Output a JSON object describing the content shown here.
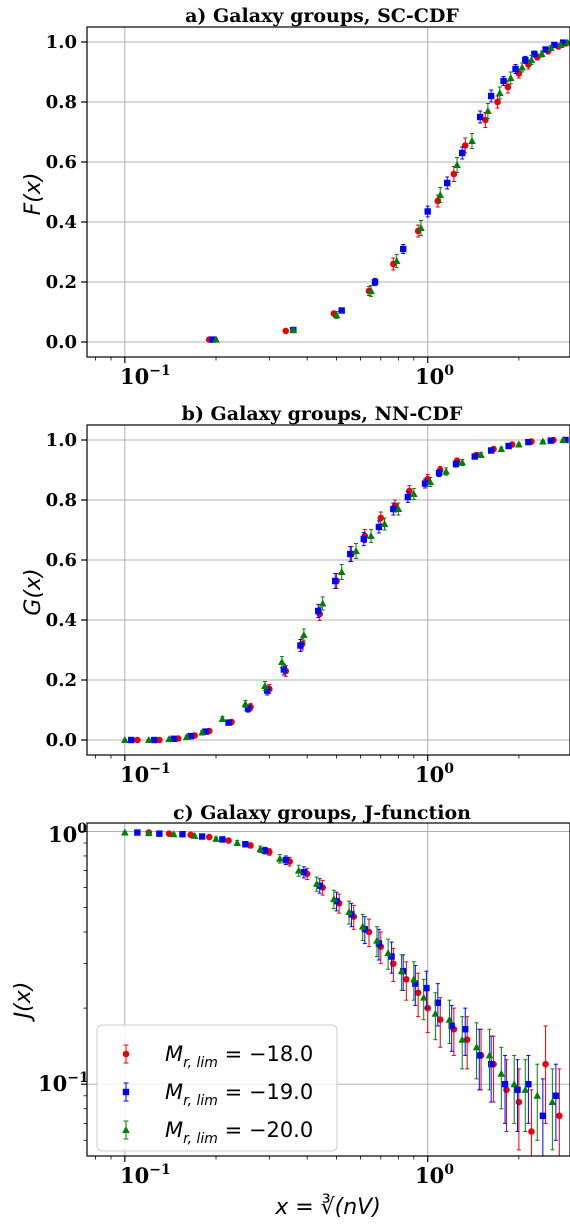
{
  "colors": {
    "red": "#e8000b",
    "blue": "#0000ff",
    "green": "#008000",
    "grid": "#b0b0b0"
  },
  "xlabel": "x = ∛(nV)",
  "legend": {
    "placement": "lower-left",
    "entries": [
      {
        "label": "M_{r,lim} = −18.0",
        "text_main": "M",
        "text_sub": "r, lim",
        "text_rest": " = −18.0",
        "color": "#e8000b",
        "marker": "circle"
      },
      {
        "label": "M_{r,lim} = −19.0",
        "text_main": "M",
        "text_sub": "r, lim",
        "text_rest": " = −19.0",
        "color": "#0000ff",
        "marker": "square"
      },
      {
        "label": "M_{r,lim} = −20.0",
        "text_main": "M",
        "text_sub": "r, lim",
        "text_rest": " = −20.0",
        "color": "#008000",
        "marker": "triangle"
      }
    ]
  },
  "chart_data": [
    {
      "type": "scatter",
      "title": "a) Galaxy groups, SC-CDF",
      "ylabel": "F(x)",
      "xscale": "log",
      "yscale": "linear",
      "xlim": [
        0.075,
        2.95
      ],
      "ylim": [
        -0.05,
        1.05
      ],
      "yticks": [
        "0.0",
        "0.2",
        "0.4",
        "0.6",
        "0.8",
        "1.0"
      ],
      "xticks": [
        "10",
        "10"
      ],
      "xtick_exponents": [
        "−1",
        "0"
      ],
      "grid": true,
      "series": [
        {
          "name": "M_{r,lim} = −18.0",
          "x": [
            0.19,
            0.34,
            0.49,
            0.64,
            0.77,
            0.93,
            1.08,
            1.22,
            1.33,
            1.55,
            1.7,
            1.84,
            2.0,
            2.15,
            2.3,
            2.5,
            2.7,
            2.85
          ],
          "y": [
            0.008,
            0.037,
            0.095,
            0.17,
            0.26,
            0.37,
            0.47,
            0.56,
            0.655,
            0.74,
            0.8,
            0.85,
            0.895,
            0.925,
            0.95,
            0.97,
            0.985,
            0.995
          ]
        },
        {
          "name": "M_{r,lim} = −19.0",
          "x": [
            0.195,
            0.36,
            0.52,
            0.67,
            0.83,
            1.0,
            1.16,
            1.3,
            1.49,
            1.62,
            1.78,
            1.95,
            2.1,
            2.25,
            2.45,
            2.62,
            2.8
          ],
          "y": [
            0.008,
            0.04,
            0.105,
            0.2,
            0.31,
            0.435,
            0.53,
            0.63,
            0.75,
            0.82,
            0.87,
            0.91,
            0.94,
            0.96,
            0.975,
            0.99,
            0.998
          ]
        },
        {
          "name": "M_{r,lim} = −20.0",
          "x": [
            0.2,
            0.36,
            0.5,
            0.65,
            0.79,
            0.95,
            1.1,
            1.25,
            1.4,
            1.58,
            1.73,
            1.88,
            2.05,
            2.2,
            2.38,
            2.55,
            2.75,
            2.9
          ],
          "y": [
            0.008,
            0.04,
            0.09,
            0.17,
            0.27,
            0.38,
            0.49,
            0.59,
            0.67,
            0.77,
            0.83,
            0.88,
            0.915,
            0.94,
            0.96,
            0.98,
            0.99,
            0.998
          ]
        }
      ],
      "errors": [
        [
          0.004,
          0.005,
          0.008,
          0.015,
          0.02,
          0.02,
          0.02,
          0.025,
          0.025,
          0.025,
          0.02,
          0.02,
          0.015,
          0.015,
          0.01,
          0.01,
          0.008,
          0.004
        ],
        [
          0.004,
          0.005,
          0.008,
          0.012,
          0.015,
          0.018,
          0.02,
          0.02,
          0.02,
          0.02,
          0.015,
          0.015,
          0.012,
          0.01,
          0.008,
          0.006,
          0.004
        ],
        [
          0.004,
          0.005,
          0.012,
          0.018,
          0.022,
          0.025,
          0.025,
          0.025,
          0.025,
          0.025,
          0.02,
          0.02,
          0.015,
          0.015,
          0.01,
          0.008,
          0.006,
          0.004
        ]
      ]
    },
    {
      "type": "scatter",
      "title": "b) Galaxy groups, NN-CDF",
      "ylabel": "G(x)",
      "xscale": "log",
      "yscale": "linear",
      "xlim": [
        0.075,
        2.95
      ],
      "ylim": [
        -0.05,
        1.05
      ],
      "yticks": [
        "0.0",
        "0.2",
        "0.4",
        "0.6",
        "0.8",
        "1.0"
      ],
      "xticks": [
        "10",
        "10"
      ],
      "xtick_exponents": [
        "−1",
        "0"
      ],
      "grid": true,
      "series": [
        {
          "name": "M_{r,lim} = −18.0",
          "x": [
            0.11,
            0.13,
            0.15,
            0.17,
            0.19,
            0.225,
            0.26,
            0.3,
            0.34,
            0.385,
            0.44,
            0.5,
            0.56,
            0.62,
            0.7,
            0.78,
            0.87,
            1.0,
            1.1,
            1.25,
            1.45,
            1.65,
            1.9,
            2.2,
            2.6
          ],
          "y": [
            0.0,
            0.0,
            0.005,
            0.015,
            0.03,
            0.06,
            0.11,
            0.17,
            0.23,
            0.32,
            0.42,
            0.53,
            0.62,
            0.68,
            0.74,
            0.78,
            0.83,
            0.87,
            0.9,
            0.93,
            0.95,
            0.97,
            0.985,
            0.995,
            1.0
          ]
        },
        {
          "name": "M_{r,lim} = −19.0",
          "x": [
            0.105,
            0.125,
            0.145,
            0.165,
            0.185,
            0.22,
            0.255,
            0.295,
            0.335,
            0.38,
            0.435,
            0.495,
            0.555,
            0.615,
            0.69,
            0.77,
            0.86,
            0.98,
            1.09,
            1.24,
            1.43,
            1.62,
            1.85,
            2.15,
            2.55,
            2.85
          ],
          "y": [
            0.0,
            0.0,
            0.004,
            0.013,
            0.028,
            0.058,
            0.105,
            0.165,
            0.235,
            0.315,
            0.43,
            0.53,
            0.62,
            0.67,
            0.71,
            0.77,
            0.81,
            0.855,
            0.89,
            0.92,
            0.945,
            0.965,
            0.98,
            0.993,
            0.998,
            1.0
          ]
        },
        {
          "name": "M_{r,lim} = −20.0",
          "x": [
            0.1,
            0.12,
            0.14,
            0.16,
            0.18,
            0.21,
            0.25,
            0.29,
            0.33,
            0.39,
            0.45,
            0.52,
            0.58,
            0.65,
            0.72,
            0.8,
            0.9,
            1.02,
            1.15,
            1.3,
            1.5,
            1.75,
            2.0,
            2.4,
            2.8
          ],
          "y": [
            0.0,
            0.0,
            0.003,
            0.01,
            0.025,
            0.07,
            0.12,
            0.18,
            0.26,
            0.35,
            0.455,
            0.56,
            0.63,
            0.68,
            0.72,
            0.77,
            0.82,
            0.86,
            0.895,
            0.925,
            0.95,
            0.97,
            0.985,
            0.995,
            1.0
          ]
        }
      ],
      "errors": [
        [
          0.002,
          0.002,
          0.003,
          0.004,
          0.006,
          0.008,
          0.012,
          0.015,
          0.018,
          0.02,
          0.022,
          0.025,
          0.025,
          0.022,
          0.02,
          0.02,
          0.018,
          0.015,
          0.012,
          0.01,
          0.008,
          0.006,
          0.004,
          0.003,
          0.002
        ],
        [
          0.002,
          0.002,
          0.003,
          0.004,
          0.006,
          0.008,
          0.012,
          0.015,
          0.018,
          0.02,
          0.022,
          0.025,
          0.025,
          0.022,
          0.02,
          0.02,
          0.018,
          0.015,
          0.012,
          0.01,
          0.008,
          0.006,
          0.004,
          0.003,
          0.002,
          0.002
        ],
        [
          0.002,
          0.002,
          0.003,
          0.004,
          0.006,
          0.008,
          0.012,
          0.015,
          0.018,
          0.02,
          0.022,
          0.025,
          0.025,
          0.022,
          0.02,
          0.02,
          0.018,
          0.015,
          0.012,
          0.01,
          0.008,
          0.006,
          0.004,
          0.003,
          0.002
        ]
      ]
    },
    {
      "type": "scatter",
      "title": "c) Galaxy groups, J-function",
      "ylabel": "J(x)",
      "xscale": "log",
      "yscale": "log",
      "xlim": [
        0.075,
        2.95
      ],
      "ylim": [
        0.052,
        1.08
      ],
      "yticks": [
        "10",
        "10"
      ],
      "ytick_exponents": [
        "0",
        "−1"
      ],
      "xticks": [
        "10",
        "10"
      ],
      "xtick_exponents": [
        "−1",
        "0"
      ],
      "grid": true,
      "series": [
        {
          "name": "M_{r,lim} = −18.0",
          "x": [
            0.12,
            0.14,
            0.165,
            0.19,
            0.22,
            0.26,
            0.3,
            0.35,
            0.4,
            0.45,
            0.51,
            0.57,
            0.64,
            0.7,
            0.77,
            0.85,
            0.93,
            1.0,
            1.1,
            1.22,
            1.35,
            1.5,
            1.65,
            1.82,
            2.0,
            2.2,
            2.45,
            2.72
          ],
          "y": [
            0.99,
            0.98,
            0.97,
            0.95,
            0.92,
            0.88,
            0.83,
            0.76,
            0.68,
            0.6,
            0.52,
            0.46,
            0.4,
            0.35,
            0.3,
            0.26,
            0.23,
            0.2,
            0.18,
            0.165,
            0.15,
            0.13,
            0.12,
            0.095,
            0.085,
            0.065,
            0.12,
            0.075
          ]
        },
        {
          "name": "M_{r,lim} = −19.0",
          "x": [
            0.11,
            0.13,
            0.155,
            0.18,
            0.21,
            0.25,
            0.29,
            0.34,
            0.39,
            0.44,
            0.5,
            0.56,
            0.62,
            0.69,
            0.76,
            0.83,
            0.91,
            0.99,
            1.08,
            1.2,
            1.33,
            1.48,
            1.62,
            1.8,
            1.98,
            2.15,
            2.4,
            2.65
          ],
          "y": [
            0.99,
            0.98,
            0.975,
            0.955,
            0.93,
            0.89,
            0.84,
            0.77,
            0.69,
            0.61,
            0.53,
            0.47,
            0.41,
            0.36,
            0.32,
            0.28,
            0.25,
            0.24,
            0.21,
            0.17,
            0.165,
            0.13,
            0.12,
            0.1,
            0.095,
            0.1,
            0.075,
            0.09
          ]
        },
        {
          "name": "M_{r,lim} = −20.0",
          "x": [
            0.1,
            0.12,
            0.145,
            0.17,
            0.2,
            0.235,
            0.28,
            0.325,
            0.375,
            0.43,
            0.49,
            0.55,
            0.61,
            0.68,
            0.74,
            0.82,
            0.9,
            0.97,
            1.06,
            1.18,
            1.3,
            1.45,
            1.6,
            1.75,
            1.93,
            2.1,
            2.3,
            2.58
          ],
          "y": [
            0.99,
            0.985,
            0.975,
            0.96,
            0.935,
            0.9,
            0.85,
            0.78,
            0.7,
            0.62,
            0.54,
            0.48,
            0.42,
            0.37,
            0.33,
            0.28,
            0.26,
            0.22,
            0.19,
            0.18,
            0.15,
            0.14,
            0.13,
            0.11,
            0.1,
            0.095,
            0.09,
            0.085
          ]
        }
      ],
      "errors": [
        [
          0.01,
          0.01,
          0.01,
          0.01,
          0.015,
          0.02,
          0.025,
          0.03,
          0.035,
          0.04,
          0.045,
          0.05,
          0.05,
          0.05,
          0.045,
          0.045,
          0.045,
          0.04,
          0.04,
          0.035,
          0.035,
          0.035,
          0.035,
          0.03,
          0.03,
          0.03,
          0.05,
          0.04
        ],
        [
          0.01,
          0.01,
          0.01,
          0.01,
          0.015,
          0.02,
          0.025,
          0.03,
          0.035,
          0.04,
          0.045,
          0.05,
          0.05,
          0.05,
          0.045,
          0.045,
          0.045,
          0.04,
          0.04,
          0.035,
          0.035,
          0.035,
          0.035,
          0.03,
          0.03,
          0.03,
          0.03,
          0.03
        ],
        [
          0.01,
          0.01,
          0.01,
          0.01,
          0.015,
          0.02,
          0.025,
          0.03,
          0.035,
          0.04,
          0.045,
          0.05,
          0.05,
          0.05,
          0.045,
          0.045,
          0.045,
          0.04,
          0.04,
          0.035,
          0.035,
          0.035,
          0.035,
          0.03,
          0.03,
          0.03,
          0.03,
          0.03
        ]
      ]
    }
  ]
}
